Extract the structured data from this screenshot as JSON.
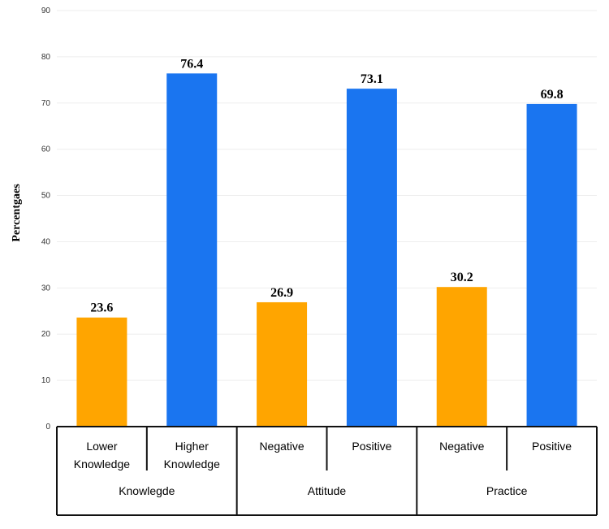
{
  "chart_data": {
    "type": "bar",
    "title": "",
    "ylabel": "Percentgaes",
    "xlabel": "",
    "ylim": [
      0,
      90
    ],
    "yticks": [
      0,
      10,
      20,
      30,
      40,
      50,
      60,
      70,
      80,
      90
    ],
    "grid": true,
    "categories": [
      {
        "line1": "Lower",
        "line2": "Knowledge"
      },
      {
        "line1": "Higher",
        "line2": "Knowledge"
      },
      {
        "line1": "Negative",
        "line2": ""
      },
      {
        "line1": "Positive",
        "line2": ""
      },
      {
        "line1": "Negative",
        "line2": ""
      },
      {
        "line1": "Positive",
        "line2": ""
      }
    ],
    "values": [
      23.6,
      76.4,
      26.9,
      73.1,
      30.2,
      69.8
    ],
    "value_labels": [
      "23.6",
      "76.4",
      "26.9",
      "73.1",
      "30.2",
      "69.8"
    ],
    "bar_colors": [
      "#FFA500",
      "#1A75F0",
      "#FFA500",
      "#1A75F0",
      "#FFA500",
      "#1A75F0"
    ],
    "groups": [
      "Knowlegde",
      "Attitude",
      "Practice"
    ]
  }
}
